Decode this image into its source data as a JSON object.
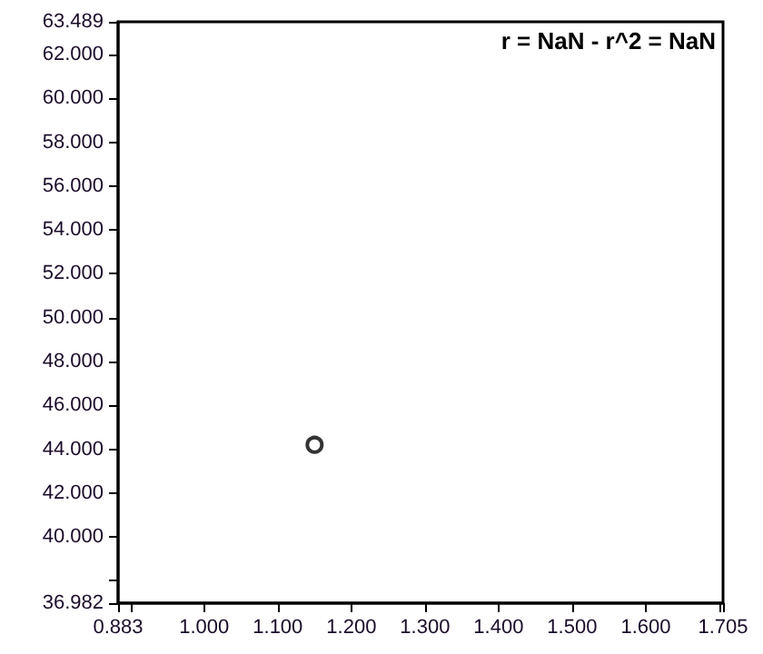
{
  "chart_data": {
    "type": "scatter",
    "annotations": [
      "r = NaN - r^2 = NaN"
    ],
    "series": [
      {
        "color": "#000000",
        "x": [
          1.15
        ],
        "values": [
          44.2
        ]
      }
    ],
    "marker": "circle",
    "grid": false,
    "xlim": [
      0.883,
      1.705
    ],
    "xticks": [
      {
        "value": 0.883,
        "label": "0.883"
      },
      {
        "value": 0.9,
        "label": null
      },
      {
        "value": 1.0,
        "label": "1.000"
      },
      {
        "value": 1.1,
        "label": "1.100"
      },
      {
        "value": 1.2,
        "label": "1.200"
      },
      {
        "value": 1.3,
        "label": "1.300"
      },
      {
        "value": 1.4,
        "label": "1.400"
      },
      {
        "value": 1.5,
        "label": "1.500"
      },
      {
        "value": 1.6,
        "label": "1.600"
      },
      {
        "value": 1.7,
        "label": null
      },
      {
        "value": 1.705,
        "label": "1.705"
      }
    ],
    "ylim": [
      36.982,
      63.489
    ],
    "yticks": [
      {
        "value": 36.982,
        "label": "36.982"
      },
      {
        "value": 38,
        "label": null
      },
      {
        "value": 40,
        "label": "40.000"
      },
      {
        "value": 42,
        "label": "42.000"
      },
      {
        "value": 44,
        "label": "44.000"
      },
      {
        "value": 46,
        "label": "46.000"
      },
      {
        "value": 48,
        "label": "48.000"
      },
      {
        "value": 50,
        "label": "50.000"
      },
      {
        "value": 52,
        "label": "52.000"
      },
      {
        "value": 54,
        "label": "54.000"
      },
      {
        "value": 56,
        "label": "56.000"
      },
      {
        "value": 58,
        "label": "58.000"
      },
      {
        "value": 60,
        "label": "60.000"
      },
      {
        "value": 62,
        "label": "62.000"
      },
      {
        "value": 63.489,
        "label": "63.489"
      }
    ]
  }
}
